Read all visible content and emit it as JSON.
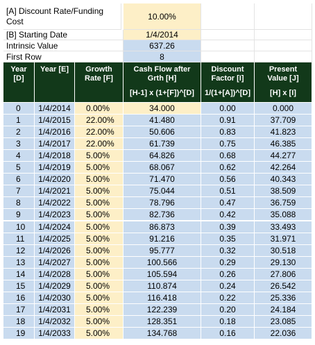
{
  "params": [
    {
      "label": "[A] Discount Rate/Funding Cost",
      "value": "10.00%"
    },
    {
      "label": "[B] Starting Date",
      "value": "1/4/2014"
    },
    {
      "label": "Intrinsic Value",
      "value": "637.26"
    },
    {
      "label": "First Row",
      "value": "8"
    }
  ],
  "table": {
    "header": [
      {
        "lines": [
          "Year",
          "[D]"
        ]
      },
      {
        "lines": [
          "Year [E]"
        ]
      },
      {
        "lines": [
          "Growth",
          "Rate [F]"
        ]
      },
      {
        "lines": [
          "Cash Flow after",
          "Grth [H]"
        ],
        "formula": "[H-1] x (1+[F])^[D]"
      },
      {
        "lines": [
          "Discount",
          "Factor [I]"
        ],
        "formula": "1/(1+[A])^[D]"
      },
      {
        "lines": [
          "Present",
          "Value [J]"
        ],
        "formula": "[H] x [I]"
      }
    ],
    "rows": [
      [
        "0",
        "1/4/2014",
        "0.00%",
        "34.000",
        "0.00",
        "0.000"
      ],
      [
        "1",
        "1/4/2015",
        "22.00%",
        "41.480",
        "0.91",
        "37.709"
      ],
      [
        "2",
        "1/4/2016",
        "22.00%",
        "50.606",
        "0.83",
        "41.823"
      ],
      [
        "3",
        "1/4/2017",
        "22.00%",
        "61.739",
        "0.75",
        "46.385"
      ],
      [
        "4",
        "1/4/2018",
        "5.00%",
        "64.826",
        "0.68",
        "44.277"
      ],
      [
        "5",
        "1/4/2019",
        "5.00%",
        "68.067",
        "0.62",
        "42.264"
      ],
      [
        "6",
        "1/4/2020",
        "5.00%",
        "71.470",
        "0.56",
        "40.343"
      ],
      [
        "7",
        "1/4/2021",
        "5.00%",
        "75.044",
        "0.51",
        "38.509"
      ],
      [
        "8",
        "1/4/2022",
        "5.00%",
        "78.796",
        "0.47",
        "36.759"
      ],
      [
        "9",
        "1/4/2023",
        "5.00%",
        "82.736",
        "0.42",
        "35.088"
      ],
      [
        "10",
        "1/4/2024",
        "5.00%",
        "86.873",
        "0.39",
        "33.493"
      ],
      [
        "11",
        "1/4/2025",
        "5.00%",
        "91.216",
        "0.35",
        "31.971"
      ],
      [
        "12",
        "1/4/2026",
        "5.00%",
        "95.777",
        "0.32",
        "30.518"
      ],
      [
        "13",
        "1/4/2027",
        "5.00%",
        "100.566",
        "0.29",
        "29.130"
      ],
      [
        "14",
        "1/4/2028",
        "5.00%",
        "105.594",
        "0.26",
        "27.806"
      ],
      [
        "15",
        "1/4/2029",
        "5.00%",
        "110.874",
        "0.24",
        "26.542"
      ],
      [
        "16",
        "1/4/2030",
        "5.00%",
        "116.418",
        "0.22",
        "25.336"
      ],
      [
        "17",
        "1/4/2031",
        "5.00%",
        "122.239",
        "0.20",
        "24.184"
      ],
      [
        "18",
        "1/4/2032",
        "5.00%",
        "128.351",
        "0.18",
        "23.085"
      ],
      [
        "19",
        "1/4/2033",
        "5.00%",
        "134.768",
        "0.16",
        "22.036"
      ]
    ]
  }
}
